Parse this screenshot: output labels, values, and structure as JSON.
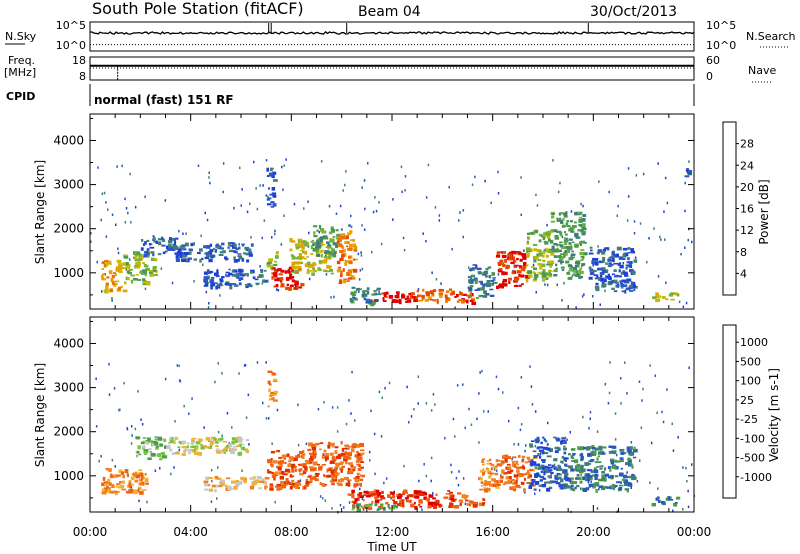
{
  "header": {
    "station": "South Pole Station (fitACF)",
    "beam": "Beam 04",
    "date": "30/Oct/2013"
  },
  "noise_panel": {
    "left_label": "N.Sky",
    "left_ticks": [
      "10^5",
      "10^0"
    ],
    "right_label": "N.Search",
    "right_ticks": [
      "10^5",
      "10^0"
    ],
    "sky_level": 0.62,
    "search_level": 0.22,
    "spike_hours": [
      7.1,
      7.2,
      10.2,
      19.8
    ]
  },
  "freq_panel": {
    "left_label_1": "Freq.",
    "left_label_2": "[MHz]",
    "left_ticks": [
      "18",
      "8"
    ],
    "right_label": "Nave",
    "right_ticks": [
      "60",
      "0"
    ],
    "freq_level": 0.62,
    "nave_level": 0.52,
    "freq_dip_hour": 1.1
  },
  "cpid_panel": {
    "label": "CPID",
    "text": "normal (fast) 151 RF"
  },
  "chart_data": [
    {
      "type": "heatmap",
      "name": "power",
      "ylabel": "Slant Range [km]",
      "xlabel": "Time UT",
      "x_ticks": [
        "00:00",
        "04:00",
        "08:00",
        "12:00",
        "16:00",
        "20:00",
        "00:00"
      ],
      "xlim": [
        0,
        24
      ],
      "ylim": [
        180,
        4600
      ],
      "y_ticks": [
        1000,
        2000,
        3000,
        4000
      ],
      "colorbar": {
        "label": "Power [dB]",
        "ticks": [
          4,
          8,
          12,
          16,
          20,
          24,
          28
        ],
        "colors": [
          "#1f3fd6",
          "#2a56c2",
          "#3f7f75",
          "#4a9a4a",
          "#72b43a",
          "#c8b800",
          "#e8a000",
          "#f07000",
          "#e64800",
          "#e00000"
        ]
      },
      "patches": [
        {
          "t0": 0.4,
          "t1": 1.3,
          "r0": 600,
          "r1": 1300,
          "level": 6
        },
        {
          "t0": 1.3,
          "t1": 2.6,
          "r0": 800,
          "r1": 1500,
          "level": 4
        },
        {
          "t0": 2.0,
          "t1": 3.4,
          "r0": 1400,
          "r1": 1850,
          "level": 1
        },
        {
          "t0": 3.4,
          "t1": 6.4,
          "r0": 1300,
          "r1": 1700,
          "level": 1
        },
        {
          "t0": 4.5,
          "t1": 7.0,
          "r0": 700,
          "r1": 1100,
          "level": 1
        },
        {
          "t0": 7.0,
          "t1": 7.4,
          "r0": 1100,
          "r1": 1500,
          "level": 4
        },
        {
          "t0": 7.2,
          "t1": 8.4,
          "r0": 650,
          "r1": 1150,
          "level": 9
        },
        {
          "t0": 7.9,
          "t1": 9.6,
          "r0": 1000,
          "r1": 1800,
          "level": 5
        },
        {
          "t0": 8.8,
          "t1": 9.8,
          "r0": 1400,
          "r1": 2100,
          "level": 3
        },
        {
          "t0": 9.8,
          "t1": 10.5,
          "r0": 800,
          "r1": 2000,
          "level": 7
        },
        {
          "t0": 10.2,
          "t1": 11.4,
          "r0": 300,
          "r1": 700,
          "level": 2
        },
        {
          "t0": 11.2,
          "t1": 12.9,
          "r0": 350,
          "r1": 600,
          "level": 9
        },
        {
          "t0": 12.9,
          "t1": 14.4,
          "r0": 350,
          "r1": 650,
          "level": 7
        },
        {
          "t0": 14.4,
          "t1": 15.4,
          "r0": 350,
          "r1": 600,
          "level": 8
        },
        {
          "t0": 15.0,
          "t1": 16.0,
          "r0": 450,
          "r1": 1200,
          "level": 2
        },
        {
          "t0": 16.1,
          "t1": 17.3,
          "r0": 700,
          "r1": 1500,
          "level": 9
        },
        {
          "t0": 17.3,
          "t1": 18.3,
          "r0": 800,
          "r1": 2000,
          "level": 4
        },
        {
          "t0": 18.3,
          "t1": 19.6,
          "r0": 900,
          "r1": 2400,
          "level": 3
        },
        {
          "t0": 19.8,
          "t1": 21.6,
          "r0": 600,
          "r1": 1600,
          "level": 1
        },
        {
          "t0": 22.3,
          "t1": 23.4,
          "r0": 380,
          "r1": 560,
          "level": 5
        },
        {
          "t0": 7.0,
          "t1": 7.3,
          "r0": 2500,
          "r1": 3400,
          "level": 1
        },
        {
          "t0": 23.6,
          "t1": 23.8,
          "r0": 3200,
          "r1": 3400,
          "level": 1
        }
      ]
    },
    {
      "type": "heatmap",
      "name": "velocity",
      "ylabel": "Slant Range [km]",
      "xlabel": "Time UT",
      "x_ticks": [
        "00:00",
        "04:00",
        "08:00",
        "12:00",
        "16:00",
        "20:00",
        "00:00"
      ],
      "xlim": [
        0,
        24
      ],
      "ylim": [
        180,
        4600
      ],
      "y_ticks": [
        1000,
        2000,
        3000,
        4000
      ],
      "colorbar": {
        "label": "Velocity [m s-1]",
        "ticks": [
          "1000",
          "500",
          "100",
          "25",
          "-25",
          "-100",
          "-500",
          "-1000"
        ],
        "colors": [
          "#1f3fd6",
          "#2a56c2",
          "#3f7f75",
          "#4a9a4a",
          "#72c43a",
          "#c8c8c8",
          "#f0b030",
          "#f08020",
          "#f06010",
          "#e03000",
          "#e00000"
        ]
      },
      "patches": [
        {
          "t0": 0.4,
          "t1": 2.2,
          "r0": 600,
          "r1": 1200,
          "level": 7
        },
        {
          "t0": 1.8,
          "t1": 3.2,
          "r0": 1400,
          "r1": 1900,
          "level": 4
        },
        {
          "t0": 3.2,
          "t1": 6.2,
          "r0": 1500,
          "r1": 1900,
          "level": 5
        },
        {
          "t0": 4.5,
          "t1": 7.0,
          "r0": 700,
          "r1": 1000,
          "level": 6
        },
        {
          "t0": 7.0,
          "t1": 8.6,
          "r0": 700,
          "r1": 1600,
          "level": 8
        },
        {
          "t0": 8.6,
          "t1": 10.8,
          "r0": 800,
          "r1": 1800,
          "level": 8
        },
        {
          "t0": 10.2,
          "t1": 14.6,
          "r0": 300,
          "r1": 700,
          "level": 9
        },
        {
          "t0": 14.6,
          "t1": 15.6,
          "r0": 350,
          "r1": 600,
          "level": 8
        },
        {
          "t0": 15.4,
          "t1": 16.3,
          "r0": 700,
          "r1": 1400,
          "level": 7
        },
        {
          "t0": 16.3,
          "t1": 17.6,
          "r0": 700,
          "r1": 1500,
          "level": 8
        },
        {
          "t0": 17.4,
          "t1": 18.9,
          "r0": 700,
          "r1": 1900,
          "level": 1
        },
        {
          "t0": 18.9,
          "t1": 21.6,
          "r0": 700,
          "r1": 1700,
          "level": 2
        },
        {
          "t0": 22.3,
          "t1": 23.4,
          "r0": 380,
          "r1": 560,
          "level": 2
        },
        {
          "t0": 7.0,
          "t1": 7.3,
          "r0": 2500,
          "r1": 3400,
          "level": 7
        },
        {
          "t0": 10.2,
          "t1": 12.2,
          "r0": 250,
          "r1": 380,
          "level": 3
        }
      ]
    }
  ]
}
